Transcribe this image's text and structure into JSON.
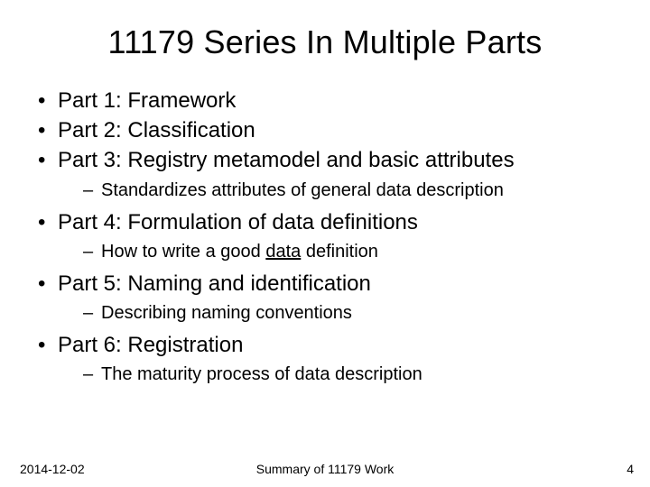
{
  "title": "11179 Series In Multiple Parts",
  "bullets": {
    "part1": "Part 1: Framework",
    "part2": "Part 2: Classification",
    "part3": "Part 3: Registry metamodel and basic attributes",
    "part3_sub": "Standardizes attributes of general data description",
    "part4": "Part 4: Formulation of data definitions",
    "part4_sub_prefix": "How to write a good ",
    "part4_sub_underlined": "data",
    "part4_sub_suffix": " definition",
    "part5": "Part 5: Naming and identification",
    "part5_sub": "Describing naming conventions",
    "part6": "Part 6: Registration",
    "part6_sub": "The maturity process of data description"
  },
  "footer": {
    "date": "2014-12-02",
    "center": "Summary of 11179 Work",
    "page": "4"
  },
  "style": {
    "background_color": "#ffffff",
    "text_color": "#000000",
    "title_fontsize": 36,
    "body_fontsize": 24,
    "sub_fontsize": 20,
    "footer_fontsize": 14,
    "font_family": "Arial"
  }
}
